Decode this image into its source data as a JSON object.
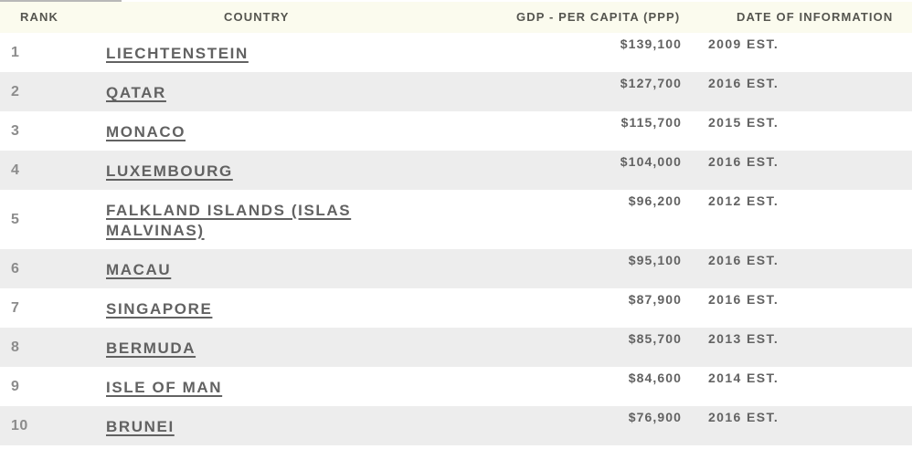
{
  "table": {
    "headers": {
      "rank": "RANK",
      "country": "COUNTRY",
      "gdp": "GDP - PER CAPITA (PPP)",
      "date": "DATE OF INFORMATION"
    },
    "rows": [
      {
        "rank": "1",
        "country": "LIECHTENSTEIN",
        "gdp": "$139,100",
        "date": "2009 EST."
      },
      {
        "rank": "2",
        "country": "QATAR",
        "gdp": "$127,700",
        "date": "2016 EST."
      },
      {
        "rank": "3",
        "country": "MONACO",
        "gdp": "$115,700",
        "date": "2015 EST."
      },
      {
        "rank": "4",
        "country": "LUXEMBOURG",
        "gdp": "$104,000",
        "date": "2016 EST."
      },
      {
        "rank": "5",
        "country": "FALKLAND ISLANDS (ISLAS MALVINAS)",
        "gdp": "$96,200",
        "date": "2012 EST."
      },
      {
        "rank": "6",
        "country": "MACAU",
        "gdp": "$95,100",
        "date": "2016 EST."
      },
      {
        "rank": "7",
        "country": "SINGAPORE",
        "gdp": "$87,900",
        "date": "2016 EST."
      },
      {
        "rank": "8",
        "country": "BERMUDA",
        "gdp": "$85,700",
        "date": "2013 EST."
      },
      {
        "rank": "9",
        "country": "ISLE OF MAN",
        "gdp": "$84,600",
        "date": "2014 EST."
      },
      {
        "rank": "10",
        "country": "BRUNEI",
        "gdp": "$76,900",
        "date": "2016 EST."
      }
    ]
  },
  "colors": {
    "header_background": "#fbfbee",
    "row_shaded": "#ededed",
    "text": "#626262",
    "rank_text": "#8c8c8c"
  }
}
